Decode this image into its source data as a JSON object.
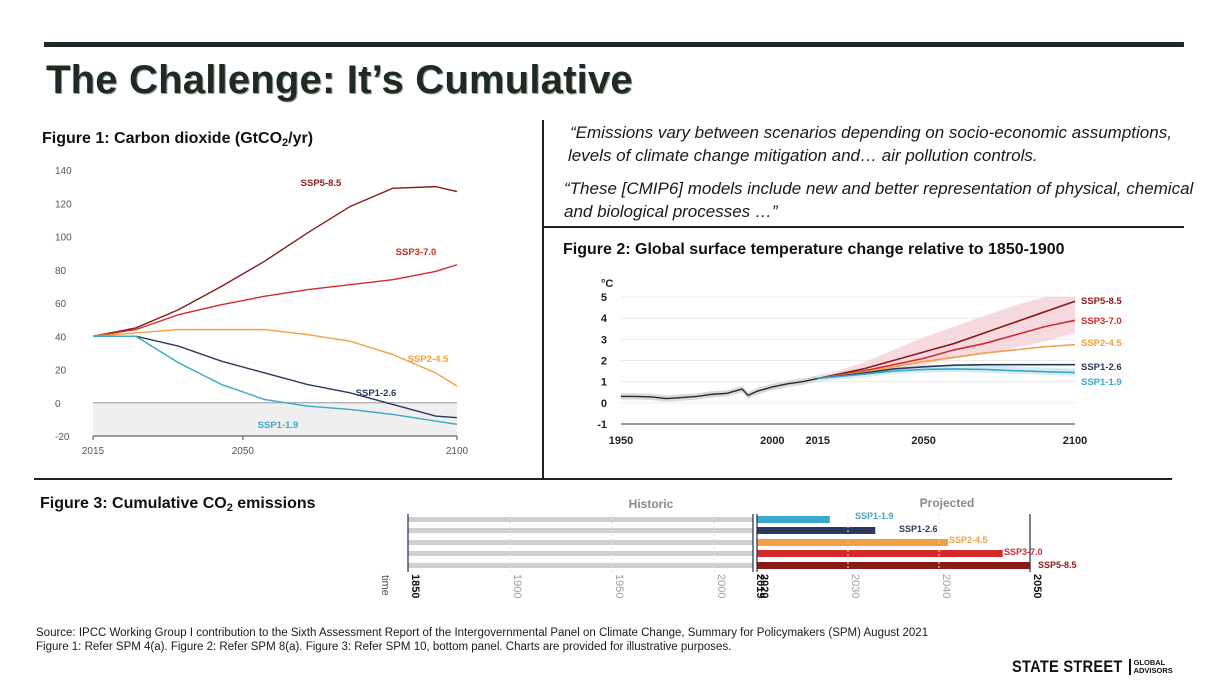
{
  "slide": {
    "title": "The Challenge: It’s Cumulative",
    "fig1_title_a": "Figure 1: Carbon dioxide (GtCO",
    "fig1_title_sub": "2",
    "fig1_title_b": "/yr)",
    "fig2_title": "Figure 2: Global surface temperature change relative to 1850-1900",
    "fig3_title_a": "Figure 3: Cumulative CO",
    "fig3_title_sub": "2",
    "fig3_title_b": " emissions",
    "quote1": "“Emissions vary between scenarios depending on socio-economic assumptions, levels of climate change mitigation and… air pollution controls.",
    "quote2": "“These [CMIP6] models include new and better representation of physical, chemical and biological processes …”",
    "source_line1": "Source: IPCC Working Group I contribution to the Sixth Assessment Report of the Intergovernmental Panel on Climate Change, Summary for Policymakers (SPM) August 2021",
    "source_line2": "Figure 1: Refer SPM 4(a).  Figure 2: Refer SPM 8(a). Figure 3: Refer SPM 10, bottom panel. Charts are provided for illustrative purposes.",
    "logo_main": "STATE STREET",
    "logo_sub1": "GLOBAL",
    "logo_sub2": "ADVISORS"
  },
  "colors": {
    "ssp585": "#8b1a1a",
    "ssp370": "#d42a2a",
    "ssp245": "#f0a040",
    "ssp126": "#2b3a5c",
    "ssp119": "#3aa8cc",
    "historic": "#2a2a2a",
    "grey_bar": "#cfcfcf"
  },
  "chart_data": [
    {
      "type": "line",
      "title": "Figure 1: Carbon dioxide (GtCO2/yr)",
      "xlim": [
        2015,
        2100
      ],
      "ylim": [
        -20,
        140
      ],
      "x_ticks": [
        "2015",
        "2050",
        "2100"
      ],
      "y_ticks": [
        "140",
        "120",
        "100",
        "80",
        "60",
        "40",
        "20",
        "0",
        "-20"
      ],
      "x": [
        2015,
        2025,
        2035,
        2045,
        2055,
        2065,
        2075,
        2085,
        2095,
        2100
      ],
      "series": [
        {
          "name": "SSP5-8.5",
          "key": "ssp585",
          "values": [
            40,
            45,
            56,
            70,
            85,
            102,
            118,
            129,
            130,
            127
          ]
        },
        {
          "name": "SSP3-7.0",
          "key": "ssp370",
          "values": [
            40,
            44,
            53,
            59,
            64,
            68,
            71,
            74,
            79,
            83
          ]
        },
        {
          "name": "SSP2-4.5",
          "key": "ssp245",
          "values": [
            40,
            42,
            44,
            44,
            44,
            41,
            37,
            29,
            18,
            10
          ]
        },
        {
          "name": "SSP1-2.6",
          "key": "ssp126",
          "values": [
            40,
            40,
            34,
            25,
            18,
            11,
            6,
            -1,
            -8,
            -9
          ]
        },
        {
          "name": "SSP1-1.9",
          "key": "ssp119",
          "values": [
            40,
            40,
            24,
            11,
            2,
            -2,
            -4,
            -7,
            -11,
            -13
          ]
        }
      ],
      "shaded_band_below_zero": true
    },
    {
      "type": "line",
      "title": "Figure 2: Global surface temperature change relative to 1850-1900",
      "ylabel": "°C",
      "xlim": [
        1950,
        2100
      ],
      "ylim": [
        -1,
        5
      ],
      "x_ticks": [
        "1950",
        "2000",
        "2015",
        "2050",
        "2100"
      ],
      "y_ticks": [
        "5",
        "4",
        "3",
        "2",
        "1",
        "0",
        "-1"
      ],
      "historic": {
        "x": [
          1950,
          1955,
          1960,
          1965,
          1970,
          1975,
          1980,
          1985,
          1990,
          1992,
          1995,
          2000,
          2005,
          2010,
          2015
        ],
        "values": [
          0.3,
          0.3,
          0.28,
          0.2,
          0.25,
          0.3,
          0.4,
          0.45,
          0.65,
          0.35,
          0.55,
          0.75,
          0.9,
          1.0,
          1.15
        ]
      },
      "x": [
        2015,
        2030,
        2040,
        2050,
        2060,
        2070,
        2080,
        2090,
        2100
      ],
      "series": [
        {
          "name": "SSP5-8.5",
          "key": "ssp585",
          "values": [
            1.15,
            1.6,
            2.0,
            2.4,
            2.8,
            3.3,
            3.8,
            4.3,
            4.8
          ]
        },
        {
          "name": "SSP3-7.0",
          "key": "ssp370",
          "values": [
            1.15,
            1.5,
            1.8,
            2.1,
            2.5,
            2.8,
            3.2,
            3.6,
            3.9
          ]
        },
        {
          "name": "SSP2-4.5",
          "key": "ssp245",
          "values": [
            1.15,
            1.45,
            1.7,
            1.95,
            2.15,
            2.35,
            2.5,
            2.65,
            2.75
          ]
        },
        {
          "name": "SSP1-2.6",
          "key": "ssp126",
          "values": [
            1.15,
            1.4,
            1.6,
            1.7,
            1.78,
            1.8,
            1.8,
            1.8,
            1.8
          ]
        },
        {
          "name": "SSP1-1.9",
          "key": "ssp119",
          "values": [
            1.15,
            1.35,
            1.5,
            1.58,
            1.6,
            1.58,
            1.52,
            1.47,
            1.43
          ]
        }
      ],
      "band": {
        "series": "ssp585",
        "upper": [
          1.2,
          1.9,
          2.5,
          3.1,
          3.6,
          4.1,
          4.6,
          5.0,
          5.0
        ],
        "lower": [
          1.1,
          1.35,
          1.6,
          1.8,
          2.1,
          2.3,
          2.6,
          2.9,
          3.3
        ]
      }
    },
    {
      "type": "bar",
      "title": "Figure 3: Cumulative CO2 emissions",
      "section_labels": [
        "Historic",
        "Projected"
      ],
      "axis_label": "time",
      "tick_labels": [
        "1850",
        "1900",
        "1950",
        "2000",
        "2019",
        "2020",
        "2030",
        "2040",
        "2050"
      ],
      "historic_range": [
        1850,
        2019
      ],
      "projected_start": 2020,
      "bars": [
        {
          "name": "SSP1-1.9",
          "key": "ssp119",
          "end_year": 2028
        },
        {
          "name": "SSP1-2.6",
          "key": "ssp126",
          "end_year": 2033
        },
        {
          "name": "SSP2-4.5",
          "key": "ssp245",
          "end_year": 2041
        },
        {
          "name": "SSP3-7.0",
          "key": "ssp370",
          "end_year": 2047
        },
        {
          "name": "SSP5-8.5",
          "key": "ssp585",
          "end_year": 2050
        }
      ]
    }
  ]
}
